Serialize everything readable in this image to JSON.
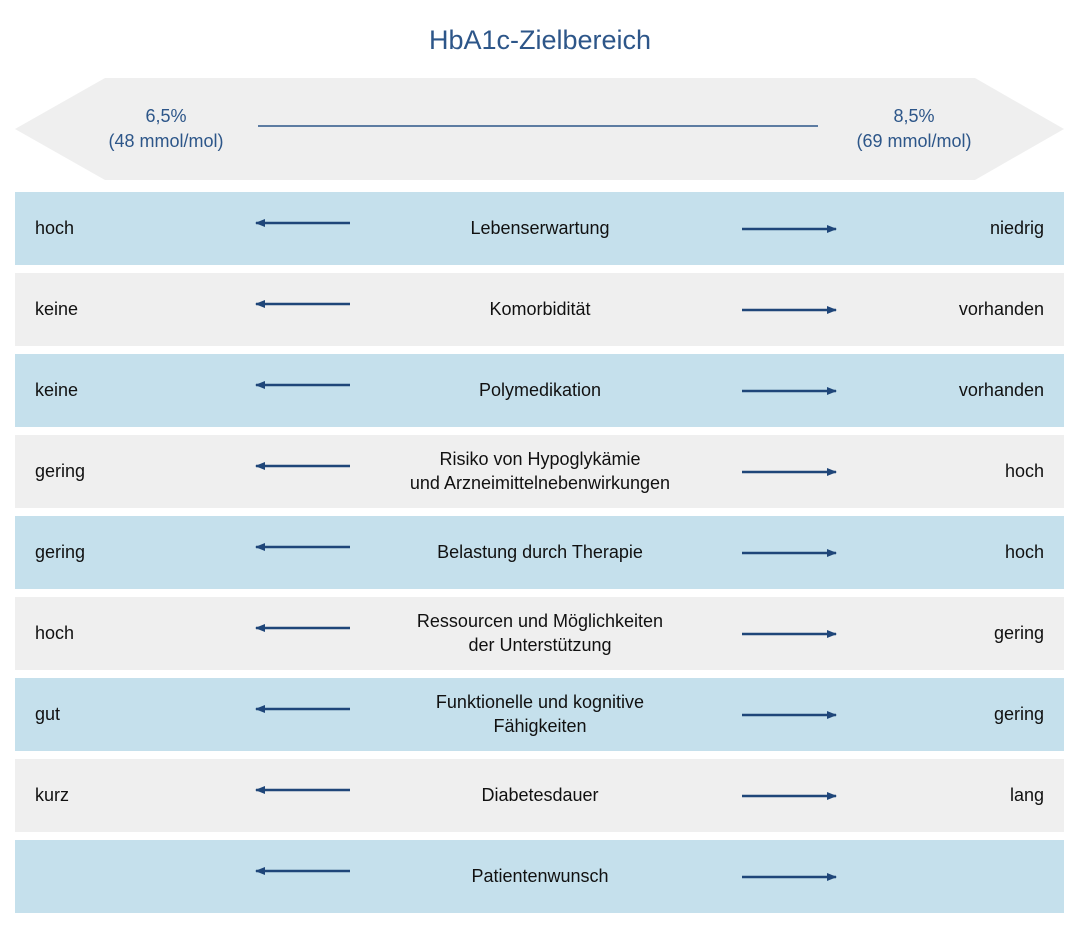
{
  "title": "HbA1c-Zielbereich",
  "range": {
    "left": {
      "value": "6,5%",
      "unit": "(48 mmol/mol)"
    },
    "right": {
      "value": "8,5%",
      "unit": "(69 mmol/mol)"
    }
  },
  "rows": [
    {
      "left": "hoch",
      "label": [
        "Lebenserwartung"
      ],
      "right": "niedrig"
    },
    {
      "left": "keine",
      "label": [
        "Komorbidität"
      ],
      "right": "vorhanden"
    },
    {
      "left": "keine",
      "label": [
        "Polymedikation"
      ],
      "right": "vorhanden"
    },
    {
      "left": "gering",
      "label": [
        "Risiko von Hypoglykämie",
        "und Arzneimittelnebenwirkungen"
      ],
      "right": "hoch"
    },
    {
      "left": "gering",
      "label": [
        "Belastung durch Therapie"
      ],
      "right": "hoch"
    },
    {
      "left": "hoch",
      "label": [
        "Ressourcen und Möglichkeiten",
        "der Unterstützung"
      ],
      "right": "gering"
    },
    {
      "left": "gut",
      "label": [
        "Funktionelle und kognitive",
        "Fähigkeiten"
      ],
      "right": "gering"
    },
    {
      "left": "kurz",
      "label": [
        "Diabetesdauer"
      ],
      "right": "lang"
    },
    {
      "label": [
        "Patientenwunsch"
      ]
    }
  ]
}
